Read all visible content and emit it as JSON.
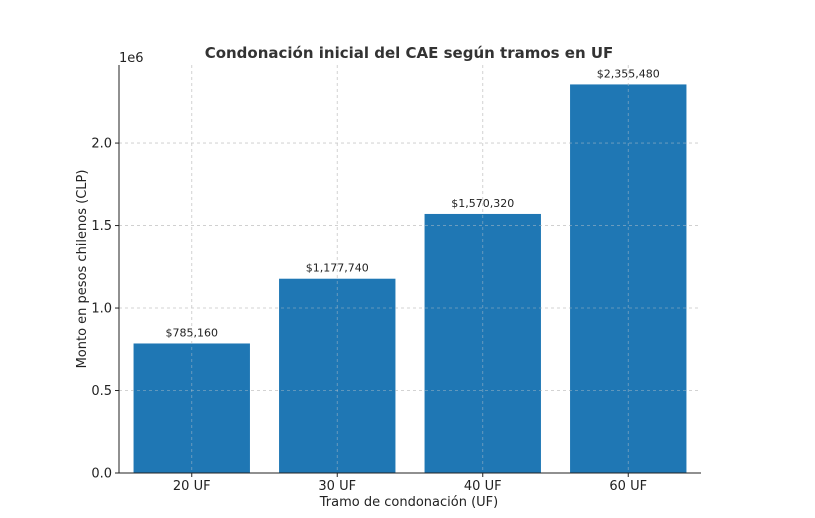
{
  "chart_data": {
    "type": "bar",
    "title": "Condonación inicial del CAE según tramos en UF",
    "xlabel": "Tramo de condonación (UF)",
    "ylabel": "Monto en pesos chilenos (CLP)",
    "offset_label": "1e6",
    "categories": [
      "20 UF",
      "30 UF",
      "40 UF",
      "60 UF"
    ],
    "values": [
      785160,
      1177740,
      1570320,
      2355480
    ],
    "data_labels": [
      "$785,160",
      "$1,177,740",
      "$1,570,320",
      "$2,355,480"
    ],
    "yticks": [
      0,
      500000,
      1000000,
      1500000,
      2000000
    ],
    "ytick_labels": [
      "0.0",
      "0.5",
      "1.0",
      "1.5",
      "2.0"
    ],
    "ylim": [
      0,
      2473254
    ],
    "bar_color": "#1f77b4",
    "grid": true
  }
}
